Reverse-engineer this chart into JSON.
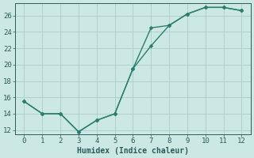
{
  "xlabel": "Humidex (Indice chaleur)",
  "background_color": "#cce8e4",
  "grid_color": "#aacccc",
  "line_color": "#2d7d6e",
  "line1_x": [
    0,
    1,
    2,
    3,
    4,
    5,
    6,
    7,
    8,
    9,
    10,
    11,
    12
  ],
  "line1_y": [
    15.5,
    14.0,
    14.0,
    11.8,
    13.2,
    14.0,
    19.5,
    22.3,
    24.8,
    26.2,
    27.0,
    27.0,
    26.6
  ],
  "line2_x": [
    0,
    1,
    2,
    3,
    4,
    5,
    6,
    7,
    8,
    9,
    10,
    11,
    12
  ],
  "line2_y": [
    15.5,
    14.0,
    14.0,
    11.8,
    13.2,
    14.0,
    19.5,
    24.5,
    24.8,
    26.2,
    27.0,
    27.0,
    26.6
  ],
  "xlim_min": -0.5,
  "xlim_max": 12.5,
  "ylim_min": 11.5,
  "ylim_max": 27.5,
  "xticks": [
    0,
    1,
    2,
    3,
    4,
    5,
    6,
    7,
    8,
    9,
    10,
    11,
    12
  ],
  "yticks": [
    12,
    14,
    16,
    18,
    20,
    22,
    24,
    26
  ],
  "markersize": 2.5,
  "linewidth": 1.0,
  "font_color": "#2d5a5a",
  "xlabel_fontsize": 7,
  "tick_fontsize": 6.5
}
